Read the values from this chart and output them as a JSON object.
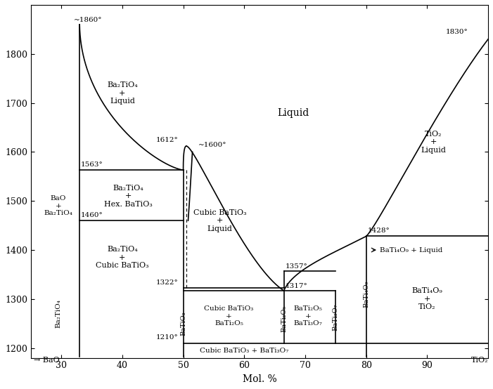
{
  "title": "",
  "xlabel": "Mol. %",
  "xlim": [
    25,
    100
  ],
  "ylim": [
    1180,
    1900
  ],
  "yticks": [
    1200,
    1300,
    1400,
    1500,
    1600,
    1700,
    1800
  ],
  "xticks": [
    30,
    40,
    50,
    60,
    70,
    80,
    90
  ],
  "x_bao": 33.0,
  "x_batio3": 50.0,
  "x_bati2o5": 66.5,
  "x_bati3o7": 75.0,
  "x_bati4o9": 80.0,
  "T_bao_melt": 1860,
  "T_eutectic1": 1563,
  "T_batio3_low": 1460,
  "T_batio3_melt": 1612,
  "T_batio3_congruent": 1600,
  "T_eutectic2": 1317,
  "T_bati4o9_peritectic": 1357,
  "T_bati4o9_eutectic": 1428,
  "T_tio2_melt": 1830,
  "T_solidus_batio3": 1322,
  "T_bottom": 1210
}
